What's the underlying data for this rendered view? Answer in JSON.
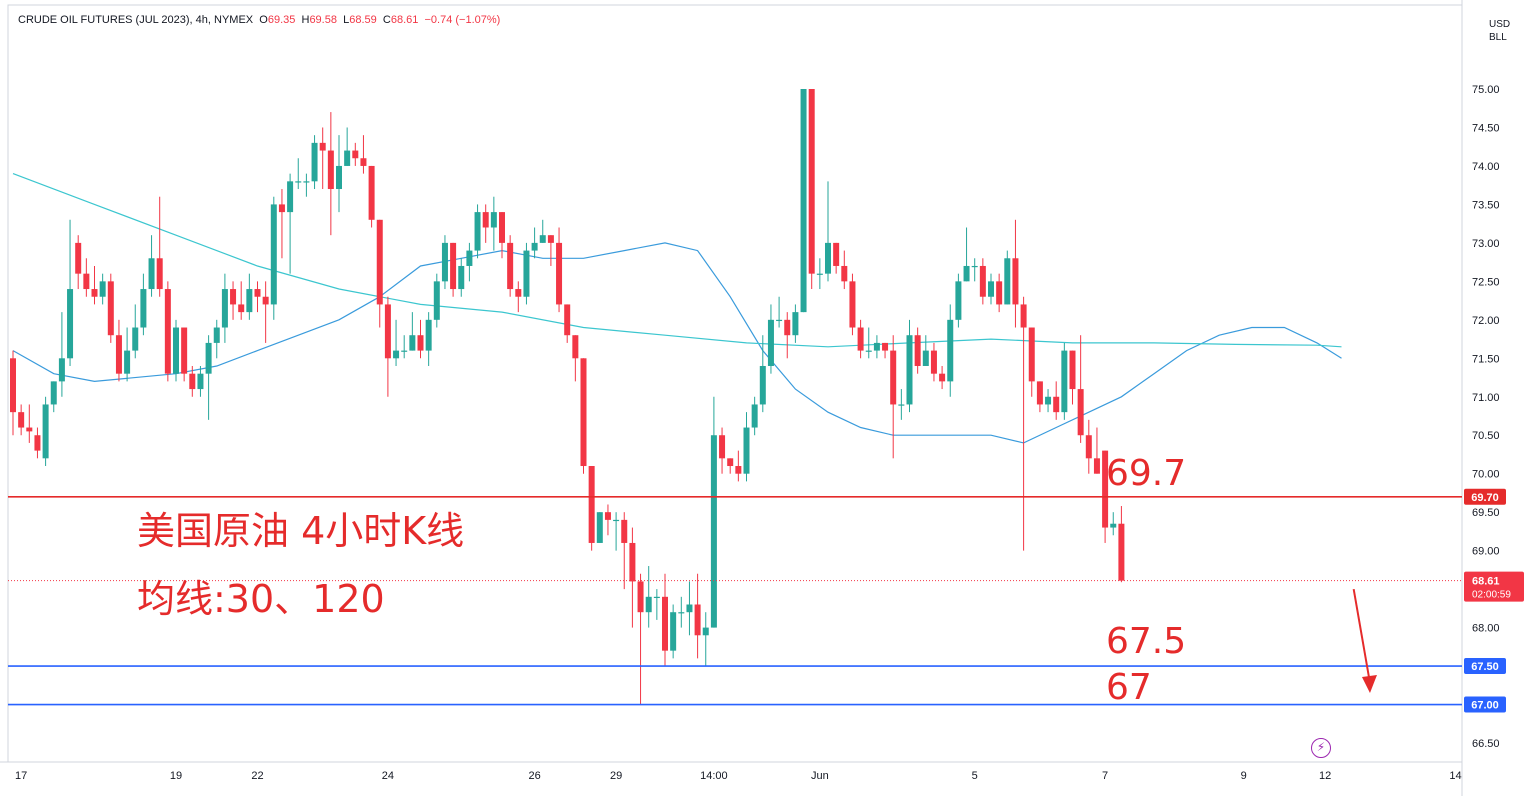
{
  "header": {
    "symbol": "CRUDE OIL FUTURES (JUL 2023), 4h, NYMEX",
    "o_label": "O",
    "o_value": "69.35",
    "h_label": "H",
    "h_value": "69.58",
    "l_label": "L",
    "l_value": "68.59",
    "c_label": "C",
    "c_value": "68.61",
    "change": "−0.74 (−1.07%)"
  },
  "currency": {
    "line1": "USD",
    "line2": "BLL"
  },
  "annotations": {
    "title": "美国原油 4小时K线",
    "ma_text": "均线:30、120",
    "level_697": "69.7",
    "level_675": "67.5",
    "level_67": "67"
  },
  "colors": {
    "up": "#26a69a",
    "down": "#f23645",
    "ma30": "#3a9bdc",
    "ma120": "#3cc6cf",
    "resistance": "#e52b2b",
    "support": "#2962ff"
  },
  "chart_data": {
    "type": "candlestick",
    "ylim": [
      66.3,
      75.3
    ],
    "y_ticks": [
      66.5,
      67.0,
      67.5,
      68.0,
      68.5,
      69.0,
      69.5,
      70.0,
      70.5,
      71.0,
      71.5,
      72.0,
      72.5,
      73.0,
      73.5,
      74.0,
      74.5,
      75.0
    ],
    "y_tick_labels": [
      "66.50",
      "67.00",
      "67.50",
      "68.00",
      "68.50",
      "69.00",
      "69.50",
      "70.00",
      "70.50",
      "71.00",
      "71.50",
      "72.00",
      "72.50",
      "73.00",
      "73.50",
      "74.00",
      "74.50",
      "75.00"
    ],
    "x_ticks": [
      {
        "bar": 1,
        "label": "17"
      },
      {
        "bar": 20,
        "label": "19"
      },
      {
        "bar": 30,
        "label": "22"
      },
      {
        "bar": 46,
        "label": "24"
      },
      {
        "bar": 64,
        "label": "26"
      },
      {
        "bar": 74,
        "label": "29"
      },
      {
        "bar": 86,
        "label": "14:00"
      },
      {
        "bar": 99,
        "label": "Jun"
      },
      {
        "bar": 118,
        "label": "5"
      },
      {
        "bar": 134,
        "label": "7"
      },
      {
        "bar": 151,
        "label": "9"
      },
      {
        "bar": 161,
        "label": "12"
      },
      {
        "bar": 177,
        "label": "14"
      }
    ],
    "candles": [
      [
        71.5,
        70.8,
        71.6,
        70.5
      ],
      [
        70.8,
        70.6,
        70.9,
        70.5
      ],
      [
        70.6,
        70.55,
        70.9,
        70.4
      ],
      [
        70.5,
        70.3,
        70.6,
        70.2
      ],
      [
        70.2,
        70.9,
        71.0,
        70.1
      ],
      [
        70.9,
        71.2,
        71.1,
        70.8
      ],
      [
        71.2,
        71.5,
        72.1,
        71.0
      ],
      [
        71.5,
        72.4,
        73.3,
        71.4
      ],
      [
        73.0,
        72.6,
        73.1,
        72.4
      ],
      [
        72.6,
        72.4,
        72.8,
        72.3
      ],
      [
        72.4,
        72.3,
        72.7,
        72.2
      ],
      [
        72.3,
        72.5,
        72.6,
        72.2
      ],
      [
        72.5,
        71.8,
        72.6,
        71.7
      ],
      [
        71.8,
        71.3,
        72.0,
        71.2
      ],
      [
        71.3,
        71.6,
        71.9,
        71.2
      ],
      [
        71.6,
        71.9,
        72.2,
        71.5
      ],
      [
        71.9,
        72.4,
        72.6,
        71.8
      ],
      [
        72.4,
        72.8,
        73.1,
        72.3
      ],
      [
        72.8,
        72.4,
        73.6,
        72.3
      ],
      [
        72.4,
        71.3,
        72.5,
        71.2
      ],
      [
        71.3,
        71.9,
        72.0,
        71.2
      ],
      [
        71.9,
        71.3,
        71.9,
        71.2
      ],
      [
        71.3,
        71.1,
        71.4,
        71.0
      ],
      [
        71.1,
        71.3,
        71.4,
        71.0
      ],
      [
        71.3,
        71.7,
        71.8,
        70.7
      ],
      [
        71.7,
        71.9,
        72.0,
        71.5
      ],
      [
        71.9,
        72.4,
        72.6,
        71.7
      ],
      [
        72.4,
        72.2,
        72.5,
        72.0
      ],
      [
        72.2,
        72.1,
        72.5,
        72.0
      ],
      [
        72.1,
        72.4,
        72.6,
        72.0
      ],
      [
        72.4,
        72.3,
        72.5,
        72.1
      ],
      [
        72.3,
        72.2,
        72.5,
        71.7
      ],
      [
        72.2,
        73.5,
        73.6,
        72.0
      ],
      [
        73.5,
        73.4,
        73.7,
        72.8
      ],
      [
        73.4,
        73.8,
        73.9,
        72.6
      ],
      [
        73.8,
        73.8,
        74.1,
        73.7
      ],
      [
        73.8,
        73.8,
        73.9,
        73.6
      ],
      [
        73.8,
        74.3,
        74.4,
        73.7
      ],
      [
        74.3,
        74.2,
        74.5,
        73.7
      ],
      [
        74.2,
        73.7,
        74.7,
        73.1
      ],
      [
        73.7,
        74.0,
        74.4,
        73.4
      ],
      [
        74.0,
        74.2,
        74.5,
        74.0
      ],
      [
        74.2,
        74.1,
        74.3,
        74.0
      ],
      [
        74.1,
        74.0,
        74.4,
        73.9
      ],
      [
        74.0,
        73.3,
        74.0,
        73.2
      ],
      [
        73.3,
        72.2,
        73.3,
        71.9
      ],
      [
        72.2,
        71.5,
        72.3,
        71.0
      ],
      [
        71.5,
        71.6,
        72.0,
        71.4
      ],
      [
        71.6,
        71.6,
        71.8,
        71.5
      ],
      [
        71.6,
        71.8,
        72.1,
        71.6
      ],
      [
        71.8,
        71.6,
        72.0,
        71.5
      ],
      [
        71.6,
        72.0,
        72.1,
        71.4
      ],
      [
        72.0,
        72.5,
        72.6,
        71.9
      ],
      [
        72.5,
        73.0,
        73.1,
        72.4
      ],
      [
        73.0,
        72.4,
        72.9,
        72.3
      ],
      [
        72.4,
        72.7,
        72.8,
        72.3
      ],
      [
        72.7,
        72.9,
        73.0,
        72.5
      ],
      [
        72.9,
        73.4,
        73.5,
        72.8
      ],
      [
        73.4,
        73.2,
        73.5,
        73.0
      ],
      [
        73.2,
        73.4,
        73.6,
        72.9
      ],
      [
        73.4,
        73.0,
        73.1,
        72.8
      ],
      [
        73.0,
        72.4,
        73.1,
        72.3
      ],
      [
        72.4,
        72.3,
        72.5,
        72.1
      ],
      [
        72.3,
        72.9,
        73.0,
        72.2
      ],
      [
        72.9,
        73.0,
        73.2,
        72.8
      ],
      [
        73.0,
        73.1,
        73.3,
        73.0
      ],
      [
        73.1,
        73.0,
        73.1,
        72.7
      ],
      [
        73.0,
        72.2,
        73.2,
        72.1
      ],
      [
        72.2,
        71.8,
        72.2,
        71.7
      ],
      [
        71.8,
        71.5,
        71.6,
        71.2
      ],
      [
        71.5,
        70.1,
        70.9,
        70.0
      ],
      [
        70.1,
        69.1,
        69.9,
        69.0
      ],
      [
        69.1,
        69.5,
        69.5,
        69.2
      ],
      [
        69.5,
        69.4,
        69.6,
        69.2
      ],
      [
        69.4,
        69.4,
        69.5,
        69.0
      ],
      [
        69.4,
        69.1,
        69.5,
        68.5
      ],
      [
        69.1,
        68.6,
        69.3,
        68.0
      ],
      [
        68.6,
        68.2,
        68.7,
        67.0
      ],
      [
        68.2,
        68.4,
        68.8,
        68.0
      ],
      [
        68.4,
        68.4,
        68.5,
        68.1
      ],
      [
        68.4,
        67.7,
        68.7,
        67.5
      ],
      [
        67.7,
        68.2,
        68.3,
        67.6
      ],
      [
        68.2,
        68.2,
        68.4,
        68.0
      ],
      [
        68.2,
        68.3,
        68.6,
        67.9
      ],
      [
        68.3,
        67.9,
        68.7,
        67.6
      ],
      [
        67.9,
        68.0,
        68.2,
        67.5
      ],
      [
        68.0,
        70.5,
        71.0,
        68.0
      ],
      [
        70.5,
        70.2,
        70.6,
        70.0
      ],
      [
        70.2,
        70.1,
        70.2,
        70.0
      ],
      [
        70.1,
        70.0,
        70.3,
        69.9
      ],
      [
        70.0,
        70.6,
        70.8,
        69.9
      ],
      [
        70.6,
        70.9,
        71.0,
        70.5
      ],
      [
        70.9,
        71.4,
        71.8,
        70.8
      ],
      [
        71.4,
        72.0,
        72.2,
        71.3
      ],
      [
        72.0,
        72.0,
        72.3,
        71.9
      ],
      [
        72.0,
        71.8,
        72.1,
        71.5
      ],
      [
        71.8,
        72.1,
        72.2,
        71.7
      ],
      [
        72.1,
        75.0,
        75.0,
        72.1
      ],
      [
        75.0,
        72.6,
        75.0,
        72.4
      ],
      [
        72.6,
        72.6,
        72.8,
        72.4
      ],
      [
        72.6,
        73.0,
        73.8,
        72.5
      ],
      [
        73.0,
        72.7,
        73.0,
        72.6
      ],
      [
        72.7,
        72.5,
        72.9,
        72.4
      ],
      [
        72.5,
        71.9,
        72.6,
        71.8
      ],
      [
        71.9,
        71.6,
        72.0,
        71.5
      ],
      [
        71.6,
        71.6,
        71.9,
        71.5
      ],
      [
        71.6,
        71.7,
        71.8,
        71.5
      ],
      [
        71.7,
        71.6,
        71.7,
        71.5
      ],
      [
        71.6,
        70.9,
        71.8,
        70.2
      ],
      [
        70.9,
        70.9,
        71.1,
        70.7
      ],
      [
        70.9,
        71.8,
        72.0,
        70.8
      ],
      [
        71.8,
        71.4,
        71.9,
        71.3
      ],
      [
        71.4,
        71.6,
        71.8,
        71.5
      ],
      [
        71.6,
        71.3,
        71.7,
        71.2
      ],
      [
        71.3,
        71.2,
        71.4,
        71.1
      ],
      [
        71.2,
        72.0,
        72.2,
        71.0
      ],
      [
        72.0,
        72.5,
        72.6,
        71.9
      ],
      [
        72.5,
        72.7,
        73.2,
        72.5
      ],
      [
        72.7,
        72.7,
        72.8,
        72.5
      ],
      [
        72.7,
        72.3,
        72.8,
        72.2
      ],
      [
        72.3,
        72.5,
        72.6,
        72.2
      ],
      [
        72.5,
        72.2,
        72.6,
        72.1
      ],
      [
        72.2,
        72.8,
        72.9,
        72.2
      ],
      [
        72.8,
        72.2,
        73.3,
        71.9
      ],
      [
        72.2,
        71.9,
        72.3,
        69.0
      ],
      [
        71.9,
        71.2,
        71.9,
        71.0
      ],
      [
        71.2,
        70.9,
        71.2,
        70.8
      ],
      [
        70.9,
        71.0,
        71.1,
        70.8
      ],
      [
        71.0,
        70.8,
        71.2,
        70.7
      ],
      [
        70.8,
        71.6,
        71.7,
        70.7
      ],
      [
        71.6,
        71.1,
        71.6,
        70.9
      ],
      [
        71.1,
        70.5,
        71.8,
        70.4
      ],
      [
        70.5,
        70.2,
        70.7,
        70.0
      ],
      [
        70.2,
        70.0,
        70.6,
        70.0
      ],
      [
        70.3,
        69.3,
        70.3,
        69.1
      ],
      [
        69.3,
        69.35,
        69.5,
        69.2
      ],
      [
        69.35,
        68.61,
        69.58,
        68.59
      ]
    ],
    "series": [
      {
        "name": "MA30",
        "points": [
          [
            0,
            71.6
          ],
          [
            5,
            71.3
          ],
          [
            10,
            71.2
          ],
          [
            20,
            71.3
          ],
          [
            25,
            71.4
          ],
          [
            30,
            71.6
          ],
          [
            35,
            71.8
          ],
          [
            40,
            72.0
          ],
          [
            45,
            72.3
          ],
          [
            50,
            72.7
          ],
          [
            55,
            72.8
          ],
          [
            60,
            72.9
          ],
          [
            65,
            72.8
          ],
          [
            70,
            72.8
          ],
          [
            75,
            72.9
          ],
          [
            80,
            73.0
          ],
          [
            84,
            72.9
          ],
          [
            88,
            72.3
          ],
          [
            92,
            71.6
          ],
          [
            96,
            71.1
          ],
          [
            100,
            70.8
          ],
          [
            104,
            70.6
          ],
          [
            108,
            70.5
          ],
          [
            112,
            70.5
          ],
          [
            116,
            70.5
          ],
          [
            120,
            70.5
          ],
          [
            124,
            70.4
          ],
          [
            128,
            70.6
          ],
          [
            132,
            70.8
          ],
          [
            136,
            71.0
          ],
          [
            140,
            71.3
          ],
          [
            144,
            71.6
          ],
          [
            148,
            71.8
          ],
          [
            152,
            71.9
          ],
          [
            156,
            71.9
          ],
          [
            160,
            71.7
          ],
          [
            163,
            71.5
          ]
        ]
      },
      {
        "name": "MA120",
        "points": [
          [
            0,
            73.9
          ],
          [
            10,
            73.5
          ],
          [
            20,
            73.1
          ],
          [
            30,
            72.7
          ],
          [
            40,
            72.4
          ],
          [
            50,
            72.2
          ],
          [
            60,
            72.1
          ],
          [
            70,
            71.9
          ],
          [
            80,
            71.8
          ],
          [
            90,
            71.7
          ],
          [
            100,
            71.65
          ],
          [
            110,
            71.7
          ],
          [
            120,
            71.75
          ],
          [
            130,
            71.7
          ],
          [
            140,
            71.7
          ],
          [
            150,
            71.68
          ],
          [
            160,
            71.67
          ],
          [
            163,
            71.65
          ]
        ]
      }
    ],
    "levels": [
      {
        "value": 69.7,
        "label": "69.70",
        "color": "#e52b2b"
      },
      {
        "value": 67.5,
        "label": "67.50",
        "color": "#2962ff"
      },
      {
        "value": 67.0,
        "label": "67.00",
        "color": "#2962ff"
      }
    ],
    "last_price": {
      "value": 68.61,
      "label": "68.61",
      "countdown": "02:00:59"
    },
    "arrow": {
      "from": [
        164.5,
        68.5
      ],
      "to": [
        166.5,
        67.15
      ]
    }
  }
}
